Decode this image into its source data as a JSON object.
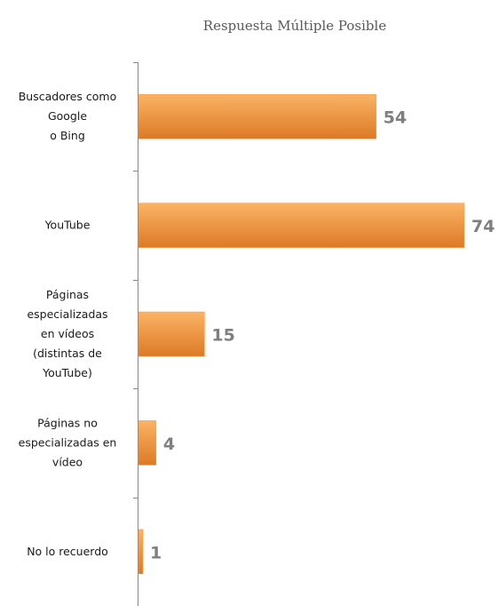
{
  "chart_data": {
    "type": "bar",
    "orientation": "horizontal",
    "title": "Respuesta Múltiple Posible",
    "categories": [
      "Buscadores como\nGoogle\no Bing",
      "YouTube",
      "Páginas\nespecializadas\nen vídeos\n(distintas de\nYouTube)",
      "Páginas no\nespecializadas en\nvídeo",
      "No lo recuerdo"
    ],
    "values": [
      54,
      74,
      15,
      4,
      1
    ],
    "color": "#f39a43"
  }
}
